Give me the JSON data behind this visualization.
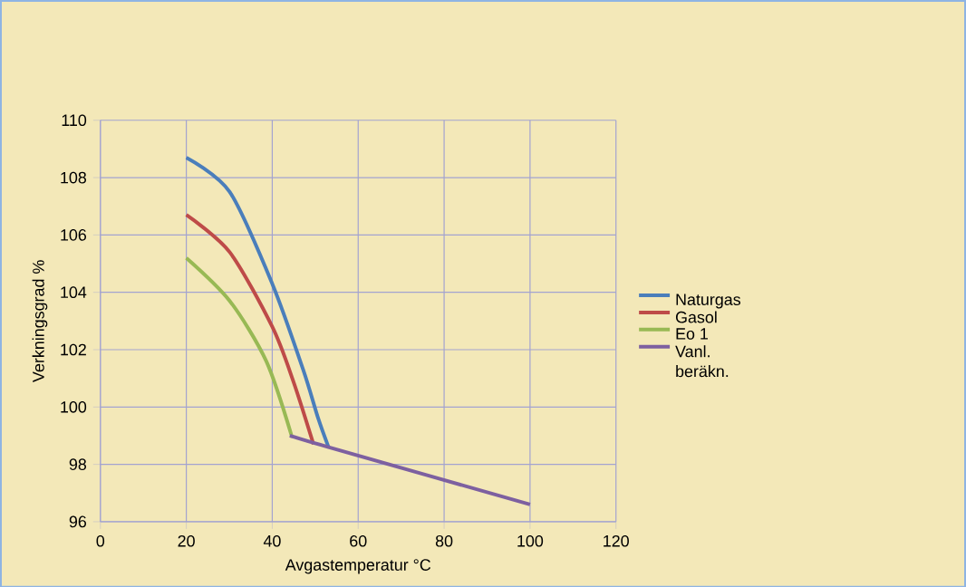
{
  "chart_data": {
    "type": "line",
    "xlabel": "Avgastemperatur °C",
    "ylabel": "Verkningsgrad %",
    "xlim": [
      0,
      120
    ],
    "xticks": [
      0,
      20,
      40,
      60,
      80,
      100,
      120
    ],
    "ylim": [
      96,
      110
    ],
    "yticks": [
      96,
      98,
      100,
      102,
      104,
      106,
      108,
      110
    ],
    "grid": true,
    "legend": "right",
    "marker": "none",
    "line_style": "solid",
    "series": [
      {
        "name": "Naturgas",
        "color": "#4a7ebb",
        "x": [
          20,
          30.1,
          40,
          47.2,
          50.7,
          53.1
        ],
        "values": [
          108.7,
          107.5,
          104.3,
          101.3,
          99.6,
          98.6
        ]
      },
      {
        "name": "Gasol",
        "color": "#be4b48",
        "x": [
          20,
          30.1,
          40,
          44.9,
          49.6
        ],
        "values": [
          106.7,
          105.4,
          102.8,
          100.9,
          98.7
        ]
      },
      {
        "name": "Eo 1",
        "color": "#98b954",
        "x": [
          20,
          30.1,
          38.6,
          44.5
        ],
        "values": [
          105.2,
          103.7,
          101.6,
          99.0
        ]
      },
      {
        "name": "Vanl. beräkn.",
        "color": "#7d60a0",
        "x": [
          44.1,
          53.1,
          100
        ],
        "values": [
          99.0,
          98.6,
          96.6
        ]
      }
    ]
  }
}
